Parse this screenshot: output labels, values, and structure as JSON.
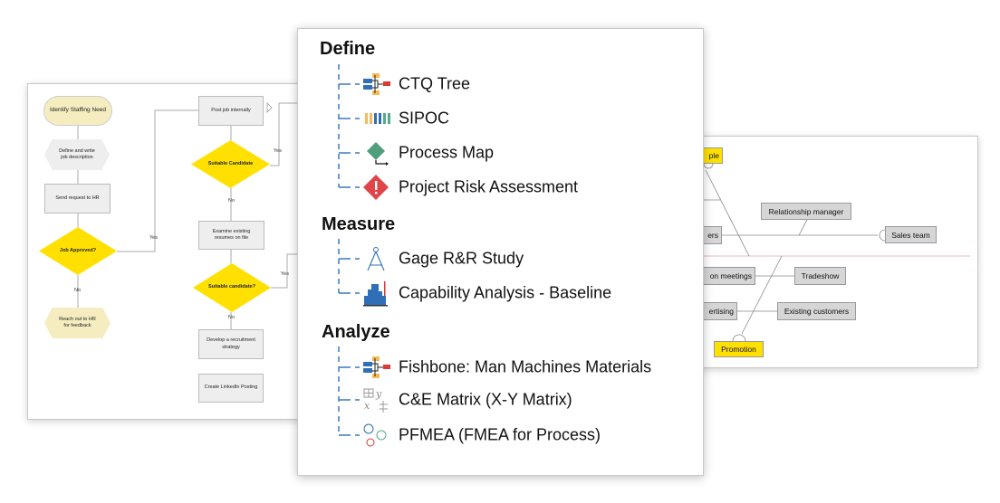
{
  "flowchart": {
    "nodes": {
      "identify": "Identify Staffing Need",
      "define": "Define and write job description",
      "send": "Send request to HR",
      "approved": "Job Approved?",
      "reach": "Reach out to HR for feedback",
      "post": "Post job internally",
      "suitable1": "Suitable Candidate",
      "examine": "Examine existing resumes on file",
      "suitable2": "Suitable candidate?",
      "develop": "Develop a recruitment strategy",
      "linkedin": "Create LinkedIn Posting"
    },
    "edge_labels": {
      "yes": "Yes",
      "no": "No"
    }
  },
  "fishbone": {
    "boxes": {
      "people": "ple",
      "customers": "ers",
      "relationship": "Relationship manager",
      "sales": "Sales team",
      "meetings": "on meetings",
      "tradeshow": "Tradeshow",
      "advertising": "ertising",
      "existing": "Existing customers",
      "promotion": "Promotion"
    },
    "colors": {
      "category": "#ffe000",
      "cause": "#d6d6d6"
    }
  },
  "menu": {
    "tree_color": "#3a78c2",
    "sections": [
      {
        "title": "Define",
        "items": [
          {
            "label": "CTQ Tree",
            "icon": "ctq-tree-icon"
          },
          {
            "label": "SIPOC",
            "icon": "sipoc-icon"
          },
          {
            "label": "Process Map",
            "icon": "process-map-icon"
          },
          {
            "label": "Project Risk Assessment",
            "icon": "risk-icon"
          }
        ]
      },
      {
        "title": "Measure",
        "items": [
          {
            "label": "Gage R&R Study",
            "icon": "compass-icon"
          },
          {
            "label": "Capability Analysis - Baseline",
            "icon": "histogram-icon"
          }
        ]
      },
      {
        "title": "Analyze",
        "items": [
          {
            "label": "Fishbone: Man Machines Materials",
            "icon": "fishbone-icon"
          },
          {
            "label": "C&E Matrix (X-Y Matrix)",
            "icon": "matrix-icon"
          },
          {
            "label": "PFMEA (FMEA for Process)",
            "icon": "pfmea-icon"
          }
        ]
      }
    ]
  }
}
